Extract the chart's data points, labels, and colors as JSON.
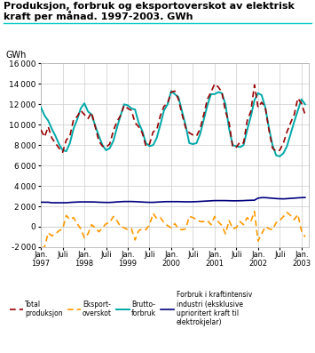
{
  "title_line1": "Produksjon, forbruk og eksportoverskot av elektrisk",
  "title_line2": "kraft per månad. 1997-2003. GWh",
  "ylabel": "GWh",
  "ylim": [
    -2000,
    16000
  ],
  "yticks": [
    -2000,
    0,
    2000,
    4000,
    6000,
    8000,
    10000,
    12000,
    14000,
    16000
  ],
  "background_color": "#ffffff",
  "grid_color": "#cccccc",
  "teal_color": "#00a8a8",
  "red_color": "#990000",
  "orange_color": "#ff9900",
  "blue_color": "#000080",
  "bruttoforbruk": [
    11700,
    10900,
    10400,
    9600,
    8900,
    8100,
    7500,
    7400,
    8200,
    9600,
    10500,
    11600,
    12100,
    11300,
    11000,
    9900,
    8900,
    8000,
    7500,
    7700,
    8400,
    9700,
    10900,
    12000,
    11900,
    11600,
    11500,
    10200,
    9400,
    8200,
    7900,
    8000,
    8700,
    10000,
    11400,
    12000,
    13300,
    13000,
    12700,
    11300,
    9900,
    8200,
    8100,
    8200,
    9100,
    10500,
    11900,
    13000,
    13000,
    13200,
    13100,
    12000,
    9600,
    8000,
    7900,
    7800,
    8000,
    9500,
    10800,
    12400,
    13100,
    12900,
    11700,
    9700,
    8000,
    7000,
    6900,
    7200,
    7900,
    9100,
    10300,
    11400,
    12500,
    12000
  ],
  "total_produksjon": [
    9500,
    8800,
    9800,
    8700,
    8200,
    7700,
    7300,
    8500,
    8900,
    10500,
    10800,
    11400,
    11000,
    10600,
    11200,
    9800,
    8400,
    7900,
    7800,
    8100,
    9400,
    10300,
    10900,
    11900,
    11600,
    11400,
    10200,
    9800,
    9200,
    7900,
    8100,
    9300,
    9500,
    10900,
    11800,
    12100,
    13200,
    13300,
    12500,
    11000,
    9700,
    9200,
    9000,
    8900,
    9600,
    11000,
    12500,
    13200,
    14000,
    13700,
    13200,
    11300,
    10200,
    7800,
    7800,
    8300,
    8200,
    10400,
    11300,
    13900,
    11700,
    12200,
    11700,
    9500,
    7700,
    7400,
    7500,
    8200,
    9300,
    10200,
    11000,
    12600,
    12100,
    11000
  ],
  "eksportoverskot": [
    -2100,
    -2000,
    -600,
    -900,
    -700,
    -400,
    -200,
    1100,
    700,
    900,
    300,
    -200,
    -1100,
    -700,
    200,
    -100,
    -500,
    -100,
    300,
    400,
    1000,
    600,
    0,
    -100,
    -300,
    -200,
    -1300,
    -400,
    -200,
    -300,
    200,
    1300,
    800,
    900,
    400,
    100,
    -100,
    300,
    -200,
    -300,
    -200,
    1000,
    900,
    700,
    500,
    500,
    600,
    200,
    1000,
    500,
    100,
    -700,
    600,
    -200,
    -100,
    500,
    200,
    900,
    500,
    1500,
    -1400,
    -700,
    0,
    -200,
    -300,
    400,
    600,
    1000,
    1400,
    1100,
    700,
    1200,
    -400,
    -1000
  ],
  "kraftintensiv": [
    2400,
    2400,
    2400,
    2350,
    2350,
    2350,
    2350,
    2350,
    2380,
    2400,
    2420,
    2430,
    2430,
    2430,
    2430,
    2420,
    2400,
    2390,
    2380,
    2380,
    2400,
    2430,
    2450,
    2470,
    2470,
    2470,
    2460,
    2440,
    2420,
    2400,
    2390,
    2390,
    2410,
    2430,
    2450,
    2460,
    2460,
    2460,
    2460,
    2450,
    2440,
    2440,
    2450,
    2460,
    2480,
    2500,
    2520,
    2540,
    2560,
    2560,
    2560,
    2560,
    2550,
    2540,
    2540,
    2550,
    2560,
    2580,
    2590,
    2600,
    2800,
    2850,
    2850,
    2820,
    2790,
    2760,
    2740,
    2730,
    2750,
    2780,
    2800,
    2830,
    2850,
    2860
  ]
}
